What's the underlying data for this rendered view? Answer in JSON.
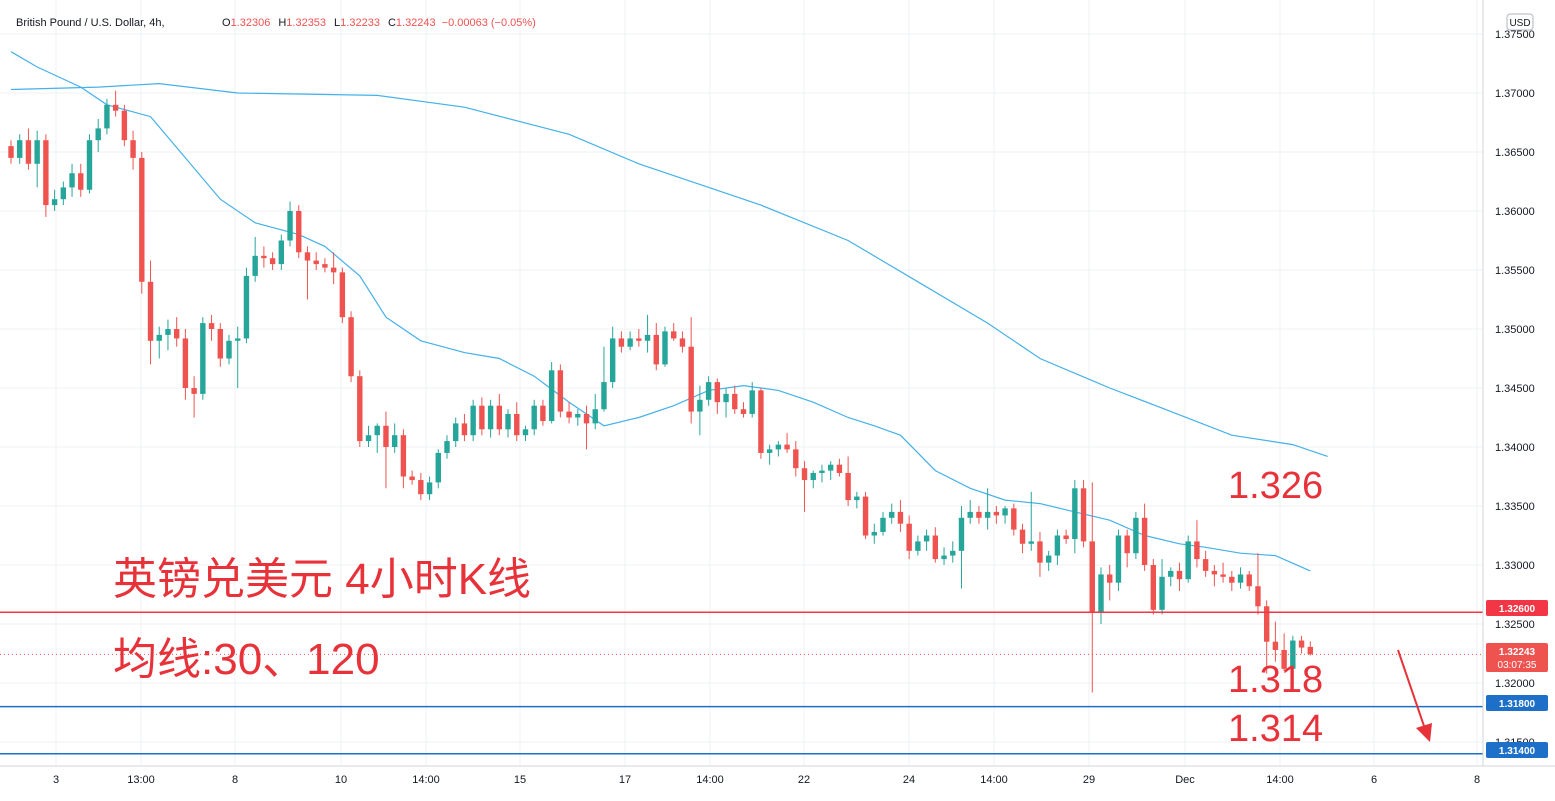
{
  "header": {
    "symbol": "British Pound / U.S. Dollar, 4h,",
    "o_label": "O",
    "o_value": "1.32306",
    "h_label": "H",
    "h_value": "1.32353",
    "l_label": "L",
    "l_value": "1.32233",
    "c_label": "C",
    "c_value": "1.32243",
    "change": "−0.00063 (−0.05%)"
  },
  "currency_button": "USD",
  "colors": {
    "up": "#26a69a",
    "down": "#ef5350",
    "ma": "#45b1e8",
    "red_line": "#f23645",
    "blue_line": "#1e6fc8",
    "grid": "#eef0f3",
    "axis_text": "#131722"
  },
  "annotations": {
    "title": "英镑兑美元 4小时K线",
    "ma_note": "均线:30、120",
    "level_1326": "1.326",
    "level_1318": "1.318",
    "level_1314": "1.314"
  },
  "price_tags": {
    "resistance": "1.32600",
    "current": "1.32243",
    "countdown": "03:07:35",
    "support_1": "1.31800",
    "support_2": "1.31400"
  },
  "chart_data": {
    "type": "candlestick",
    "y_ticks": [
      "1.37500",
      "1.37000",
      "1.36500",
      "1.36000",
      "1.35500",
      "1.35000",
      "1.34500",
      "1.34000",
      "1.33500",
      "1.33000",
      "1.32500",
      "1.32000",
      "1.31500"
    ],
    "x_ticks": [
      "3",
      "13:00",
      "8",
      "10",
      "14:00",
      "15",
      "17",
      "14:00",
      "22",
      "24",
      "14:00",
      "29",
      "Dec",
      "14:00",
      "6",
      "8"
    ],
    "ylim": [
      1.3115,
      1.3778
    ],
    "horizontal_lines": [
      {
        "value": 1.326,
        "color": "#f23645"
      },
      {
        "value": 1.318,
        "color": "#1e6fc8"
      },
      {
        "value": 1.314,
        "color": "#1e6fc8"
      }
    ],
    "current_price": 1.32243,
    "candles": [
      [
        1.3655,
        1.366,
        1.364,
        1.3645
      ],
      [
        1.3645,
        1.3665,
        1.364,
        1.366
      ],
      [
        1.366,
        1.367,
        1.3635,
        1.364
      ],
      [
        1.364,
        1.3668,
        1.362,
        1.366
      ],
      [
        1.366,
        1.3665,
        1.3595,
        1.3605
      ],
      [
        1.3605,
        1.3618,
        1.36,
        1.361
      ],
      [
        1.361,
        1.3625,
        1.3605,
        1.362
      ],
      [
        1.362,
        1.364,
        1.3612,
        1.3632
      ],
      [
        1.3632,
        1.364,
        1.3612,
        1.3618
      ],
      [
        1.3618,
        1.3665,
        1.3615,
        1.366
      ],
      [
        1.366,
        1.3678,
        1.365,
        1.367
      ],
      [
        1.367,
        1.3695,
        1.3665,
        1.369
      ],
      [
        1.369,
        1.3702,
        1.368,
        1.3685
      ],
      [
        1.3685,
        1.369,
        1.3655,
        1.366
      ],
      [
        1.366,
        1.3668,
        1.3635,
        1.3645
      ],
      [
        1.3645,
        1.365,
        1.353,
        1.354
      ],
      [
        1.354,
        1.3558,
        1.347,
        1.349
      ],
      [
        1.349,
        1.3502,
        1.3475,
        1.3495
      ],
      [
        1.3495,
        1.3508,
        1.3482,
        1.35
      ],
      [
        1.35,
        1.351,
        1.3485,
        1.3492
      ],
      [
        1.3492,
        1.35,
        1.344,
        1.345
      ],
      [
        1.345,
        1.346,
        1.3425,
        1.3445
      ],
      [
        1.3445,
        1.351,
        1.344,
        1.3505
      ],
      [
        1.3505,
        1.3512,
        1.349,
        1.35
      ],
      [
        1.35,
        1.3505,
        1.3468,
        1.3475
      ],
      [
        1.3475,
        1.3495,
        1.347,
        1.349
      ],
      [
        1.349,
        1.3502,
        1.345,
        1.3492
      ],
      [
        1.3492,
        1.3552,
        1.3488,
        1.3545
      ],
      [
        1.3545,
        1.3578,
        1.354,
        1.3562
      ],
      [
        1.3562,
        1.357,
        1.3552,
        1.356
      ],
      [
        1.356,
        1.3565,
        1.355,
        1.3555
      ],
      [
        1.3555,
        1.358,
        1.355,
        1.3575
      ],
      [
        1.3575,
        1.3608,
        1.357,
        1.36
      ],
      [
        1.36,
        1.3605,
        1.356,
        1.3565
      ],
      [
        1.3565,
        1.357,
        1.3525,
        1.3558
      ],
      [
        1.3558,
        1.3565,
        1.355,
        1.3555
      ],
      [
        1.3555,
        1.356,
        1.3548,
        1.3552
      ],
      [
        1.3552,
        1.3565,
        1.3538,
        1.3548
      ],
      [
        1.3548,
        1.3552,
        1.3505,
        1.351
      ],
      [
        1.351,
        1.3515,
        1.3455,
        1.346
      ],
      [
        1.346,
        1.3465,
        1.34,
        1.3405
      ],
      [
        1.3405,
        1.3418,
        1.34,
        1.341
      ],
      [
        1.341,
        1.342,
        1.3395,
        1.3418
      ],
      [
        1.3418,
        1.343,
        1.3365,
        1.34
      ],
      [
        1.34,
        1.342,
        1.3395,
        1.341
      ],
      [
        1.341,
        1.3415,
        1.3365,
        1.3375
      ],
      [
        1.3375,
        1.338,
        1.3368,
        1.3372
      ],
      [
        1.3372,
        1.3378,
        1.3355,
        1.336
      ],
      [
        1.336,
        1.3375,
        1.3355,
        1.337
      ],
      [
        1.337,
        1.3398,
        1.3365,
        1.3395
      ],
      [
        1.3395,
        1.341,
        1.339,
        1.3405
      ],
      [
        1.3405,
        1.3425,
        1.34,
        1.342
      ],
      [
        1.342,
        1.3428,
        1.3405,
        1.341
      ],
      [
        1.341,
        1.344,
        1.3405,
        1.3435
      ],
      [
        1.3435,
        1.3442,
        1.341,
        1.3415
      ],
      [
        1.3415,
        1.344,
        1.3408,
        1.3435
      ],
      [
        1.3435,
        1.3445,
        1.341,
        1.3415
      ],
      [
        1.3415,
        1.3432,
        1.3408,
        1.3428
      ],
      [
        1.3428,
        1.3438,
        1.3405,
        1.341
      ],
      [
        1.341,
        1.3418,
        1.3405,
        1.3415
      ],
      [
        1.3415,
        1.344,
        1.341,
        1.3435
      ],
      [
        1.3435,
        1.344,
        1.3418,
        1.3422
      ],
      [
        1.3422,
        1.3472,
        1.342,
        1.3465
      ],
      [
        1.3465,
        1.347,
        1.3425,
        1.343
      ],
      [
        1.343,
        1.3438,
        1.342,
        1.3425
      ],
      [
        1.3425,
        1.3432,
        1.3418,
        1.3428
      ],
      [
        1.3428,
        1.3435,
        1.3398,
        1.342
      ],
      [
        1.342,
        1.3445,
        1.3415,
        1.3432
      ],
      [
        1.3432,
        1.3485,
        1.343,
        1.3455
      ],
      [
        1.3455,
        1.3502,
        1.345,
        1.3492
      ],
      [
        1.3492,
        1.3498,
        1.348,
        1.3485
      ],
      [
        1.3485,
        1.3498,
        1.3482,
        1.3492
      ],
      [
        1.3492,
        1.35,
        1.3485,
        1.349
      ],
      [
        1.349,
        1.3512,
        1.348,
        1.3495
      ],
      [
        1.3495,
        1.3505,
        1.3465,
        1.347
      ],
      [
        1.347,
        1.3502,
        1.3468,
        1.3498
      ],
      [
        1.3498,
        1.3505,
        1.349,
        1.3492
      ],
      [
        1.3492,
        1.3498,
        1.348,
        1.3485
      ],
      [
        1.3485,
        1.351,
        1.342,
        1.343
      ],
      [
        1.343,
        1.3452,
        1.341,
        1.344
      ],
      [
        1.344,
        1.346,
        1.3435,
        1.3455
      ],
      [
        1.3455,
        1.3458,
        1.3428,
        1.3438
      ],
      [
        1.3438,
        1.345,
        1.3425,
        1.3445
      ],
      [
        1.3445,
        1.3452,
        1.3428,
        1.3432
      ],
      [
        1.3432,
        1.3438,
        1.3425,
        1.3428
      ],
      [
        1.3428,
        1.3455,
        1.3425,
        1.3448
      ],
      [
        1.3448,
        1.345,
        1.339,
        1.3395
      ],
      [
        1.3395,
        1.3402,
        1.3385,
        1.3398
      ],
      [
        1.3398,
        1.3405,
        1.3392,
        1.3402
      ],
      [
        1.3402,
        1.3412,
        1.3395,
        1.3398
      ],
      [
        1.3398,
        1.3405,
        1.3375,
        1.3382
      ],
      [
        1.3382,
        1.3388,
        1.3345,
        1.3372
      ],
      [
        1.3372,
        1.338,
        1.3365,
        1.3378
      ],
      [
        1.3378,
        1.3385,
        1.337,
        1.338
      ],
      [
        1.338,
        1.3388,
        1.3372,
        1.3385
      ],
      [
        1.3385,
        1.339,
        1.3375,
        1.3378
      ],
      [
        1.3378,
        1.3392,
        1.335,
        1.3355
      ],
      [
        1.3355,
        1.3362,
        1.3348,
        1.3358
      ],
      [
        1.3358,
        1.3362,
        1.3322,
        1.3325
      ],
      [
        1.3325,
        1.3335,
        1.3318,
        1.3328
      ],
      [
        1.3328,
        1.3345,
        1.3325,
        1.334
      ],
      [
        1.334,
        1.3352,
        1.3335,
        1.3345
      ],
      [
        1.3345,
        1.3355,
        1.3328,
        1.3335
      ],
      [
        1.3335,
        1.3342,
        1.3305,
        1.3312
      ],
      [
        1.3312,
        1.3325,
        1.3308,
        1.332
      ],
      [
        1.332,
        1.333,
        1.3312,
        1.3325
      ],
      [
        1.3325,
        1.3332,
        1.3302,
        1.3305
      ],
      [
        1.3305,
        1.3315,
        1.33,
        1.3308
      ],
      [
        1.3308,
        1.332,
        1.3302,
        1.3312
      ],
      [
        1.3312,
        1.335,
        1.328,
        1.334
      ],
      [
        1.334,
        1.3355,
        1.3335,
        1.3345
      ],
      [
        1.3345,
        1.335,
        1.3335,
        1.334
      ],
      [
        1.334,
        1.3365,
        1.333,
        1.3345
      ],
      [
        1.3345,
        1.335,
        1.3335,
        1.3342
      ],
      [
        1.3342,
        1.335,
        1.3335,
        1.3348
      ],
      [
        1.3348,
        1.3352,
        1.3325,
        1.333
      ],
      [
        1.333,
        1.3335,
        1.331,
        1.3318
      ],
      [
        1.3318,
        1.3362,
        1.3312,
        1.332
      ],
      [
        1.332,
        1.3328,
        1.329,
        1.3302
      ],
      [
        1.3302,
        1.3312,
        1.3295,
        1.3308
      ],
      [
        1.3308,
        1.333,
        1.33,
        1.3325
      ],
      [
        1.3325,
        1.333,
        1.3318,
        1.3322
      ],
      [
        1.3322,
        1.3372,
        1.331,
        1.3365
      ],
      [
        1.3365,
        1.3372,
        1.3315,
        1.332
      ],
      [
        1.332,
        1.337,
        1.3192,
        1.326
      ],
      [
        1.326,
        1.3298,
        1.325,
        1.3292
      ],
      [
        1.3292,
        1.33,
        1.327,
        1.3285
      ],
      [
        1.3285,
        1.333,
        1.3278,
        1.3325
      ],
      [
        1.3325,
        1.333,
        1.3298,
        1.331
      ],
      [
        1.331,
        1.3345,
        1.3305,
        1.334
      ],
      [
        1.334,
        1.3352,
        1.3295,
        1.33
      ],
      [
        1.33,
        1.3305,
        1.3258,
        1.3262
      ],
      [
        1.3262,
        1.3305,
        1.3258,
        1.329
      ],
      [
        1.329,
        1.3298,
        1.3282,
        1.3295
      ],
      [
        1.3295,
        1.3302,
        1.3278,
        1.3288
      ],
      [
        1.3288,
        1.3325,
        1.3285,
        1.332
      ],
      [
        1.332,
        1.3338,
        1.3298,
        1.3305
      ],
      [
        1.3305,
        1.3312,
        1.329,
        1.3295
      ],
      [
        1.3295,
        1.33,
        1.3282,
        1.3292
      ],
      [
        1.3292,
        1.3302,
        1.3285,
        1.329
      ],
      [
        1.329,
        1.3295,
        1.3278,
        1.3285
      ],
      [
        1.3285,
        1.3298,
        1.328,
        1.3292
      ],
      [
        1.3292,
        1.3295,
        1.3278,
        1.3282
      ],
      [
        1.3282,
        1.331,
        1.3258,
        1.3265
      ],
      [
        1.3265,
        1.327,
        1.3208,
        1.3235
      ],
      [
        1.3235,
        1.3252,
        1.3218,
        1.3228
      ],
      [
        1.3228,
        1.3242,
        1.321,
        1.3212
      ],
      [
        1.3212,
        1.324,
        1.321,
        1.3236
      ],
      [
        1.3236,
        1.324,
        1.3225,
        1.323
      ],
      [
        1.32306,
        1.32353,
        1.32233,
        1.32243
      ]
    ],
    "ma_series": [
      {
        "period": 30,
        "points": [
          [
            0,
            1.3735
          ],
          [
            3,
            1.3722
          ],
          [
            8,
            1.3705
          ],
          [
            11,
            1.369
          ],
          [
            16,
            1.368
          ],
          [
            20,
            1.3645
          ],
          [
            24,
            1.361
          ],
          [
            28,
            1.359
          ],
          [
            33,
            1.358
          ],
          [
            36,
            1.357
          ],
          [
            40,
            1.3545
          ],
          [
            43,
            1.351
          ],
          [
            47,
            1.349
          ],
          [
            52,
            1.348
          ],
          [
            56,
            1.3475
          ],
          [
            60,
            1.346
          ],
          [
            64,
            1.3438
          ],
          [
            68,
            1.3418
          ],
          [
            72,
            1.3425
          ],
          [
            76,
            1.3435
          ],
          [
            80,
            1.3448
          ],
          [
            84,
            1.3452
          ],
          [
            88,
            1.3448
          ],
          [
            92,
            1.3438
          ],
          [
            96,
            1.3425
          ],
          [
            99,
            1.3418
          ],
          [
            102,
            1.341
          ],
          [
            106,
            1.338
          ],
          [
            110,
            1.3365
          ],
          [
            114,
            1.3355
          ],
          [
            118,
            1.3352
          ],
          [
            122,
            1.3345
          ],
          [
            126,
            1.3338
          ],
          [
            130,
            1.3325
          ],
          [
            134,
            1.3318
          ],
          [
            137,
            1.3315
          ],
          [
            141,
            1.331
          ],
          [
            145,
            1.3308
          ],
          [
            149,
            1.3295
          ]
        ]
      },
      {
        "period": 120,
        "points": [
          [
            0,
            1.3703
          ],
          [
            10,
            1.3705
          ],
          [
            17,
            1.3708
          ],
          [
            26,
            1.37
          ],
          [
            42,
            1.3698
          ],
          [
            52,
            1.3688
          ],
          [
            64,
            1.3665
          ],
          [
            72,
            1.364
          ],
          [
            86,
            1.3605
          ],
          [
            96,
            1.3575
          ],
          [
            104,
            1.354
          ],
          [
            112,
            1.3505
          ],
          [
            118,
            1.3475
          ],
          [
            126,
            1.345
          ],
          [
            132,
            1.3433
          ],
          [
            140,
            1.341
          ],
          [
            147,
            1.3402
          ],
          [
            151,
            1.3392
          ]
        ]
      }
    ]
  }
}
